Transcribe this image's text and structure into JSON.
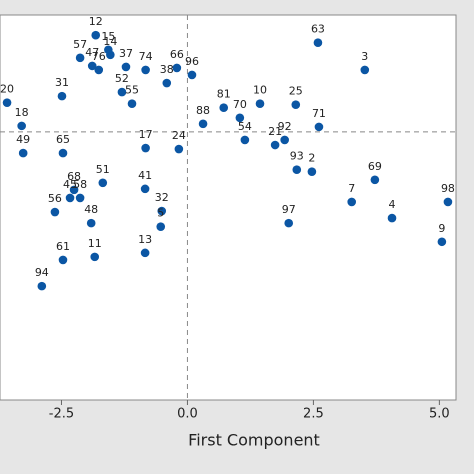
{
  "chart_data": {
    "type": "scatter",
    "x_label": "First Component",
    "xlim": [
      -3.72,
      5.33
    ],
    "ylim": [
      -5.32,
      2.32
    ],
    "xticks": [
      {
        "value": -2.5,
        "label": "-2.5"
      },
      {
        "value": 0,
        "label": "0.0"
      },
      {
        "value": 2.5,
        "label": "2.5"
      },
      {
        "value": 5,
        "label": "5.0"
      }
    ],
    "ref_x": [
      0
    ],
    "ref_y": [
      0
    ],
    "series": [
      {
        "color": "#0b56a4",
        "labels": [
          "63",
          "3",
          "20",
          "18",
          "49",
          "31",
          "65",
          "12",
          "57",
          "47",
          "15",
          "14",
          "76",
          "37",
          "52",
          "55",
          "74",
          "66",
          "96",
          "38",
          "17",
          "24",
          "10",
          "25",
          "71",
          "92",
          "2",
          "69",
          "98",
          "7",
          "4",
          "9",
          "97",
          "93",
          "51",
          "68",
          "45",
          "58",
          "56",
          "48",
          "41",
          "32",
          "5",
          "13",
          "61",
          "11",
          "94",
          "88",
          "81",
          "70",
          "54",
          "21"
        ],
        "x": [
          2.59,
          3.52,
          -3.58,
          -3.29,
          -3.26,
          -2.49,
          -2.47,
          -1.82,
          -2.13,
          -1.89,
          -1.57,
          -1.53,
          -1.76,
          -1.22,
          -1.3,
          -1.1,
          -0.83,
          -0.21,
          0.09,
          -0.41,
          -0.83,
          -0.17,
          1.44,
          2.15,
          2.61,
          1.93,
          2.47,
          3.72,
          5.17,
          3.26,
          4.06,
          5.05,
          2.01,
          2.17,
          -1.68,
          -2.25,
          -2.33,
          -2.13,
          -2.63,
          -1.91,
          -0.84,
          -0.51,
          -0.53,
          -0.84,
          -2.47,
          -1.84,
          -2.89,
          0.31,
          0.72,
          1.04,
          1.14,
          1.74
        ],
        "values": [
          1.77,
          1.23,
          0.58,
          0.12,
          -0.42,
          0.71,
          -0.42,
          1.92,
          1.47,
          1.31,
          1.63,
          1.53,
          1.23,
          1.29,
          0.79,
          0.56,
          1.23,
          1.27,
          1.13,
          0.97,
          -0.32,
          -0.34,
          0.56,
          0.54,
          0.1,
          -0.16,
          -0.79,
          -0.95,
          -1.39,
          -1.39,
          -1.71,
          -2.18,
          -1.81,
          -0.75,
          -1.01,
          -1.15,
          -1.31,
          -1.31,
          -1.59,
          -1.81,
          -1.13,
          -1.57,
          -1.88,
          -2.4,
          -2.54,
          -2.48,
          -3.06,
          0.16,
          0.48,
          0.28,
          -0.16,
          -0.26
        ]
      }
    ]
  }
}
